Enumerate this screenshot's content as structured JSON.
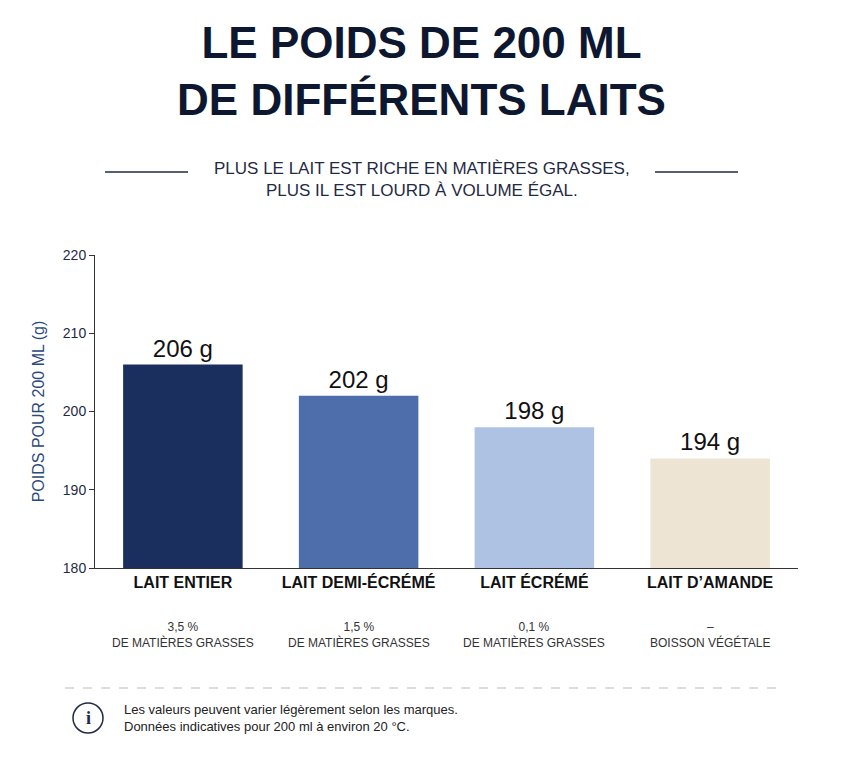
{
  "chart_data": {
    "type": "bar",
    "title": "LE POIDS DE 200 ML DE DIFFÉRENTS LAITS",
    "subtitle": "PLUS LE LAIT EST RICHE EN MATIÈRES GRASSES, PLUS IL EST LOURD À VOLUME ÉGAL.",
    "y_label": "POIDS POUR 200 ML (g)",
    "categories": [
      "LAIT ENTIER",
      "LAIT DEMI-ÉCRÉMÉ",
      "LAIT ÉCRÉMÉ",
      "LAIT D’AMANDE"
    ],
    "category_notes": [
      [
        "3,5 %",
        "DE MATIÈRES GRASSES"
      ],
      [
        "1,5 %",
        "DE MATIÈRES GRASSES"
      ],
      [
        "0,1 %",
        "DE MATIÈRES GRASSES"
      ],
      [
        "–",
        "BOISSON VÉGÉTALE"
      ]
    ],
    "values": [
      206,
      202,
      198,
      194
    ],
    "value_labels": [
      "206 g",
      "202 g",
      "198 g",
      "194 g"
    ],
    "colors": [
      "#1b2f5e",
      "#4d6eab",
      "#aec3e3",
      "#ede4d4"
    ],
    "ylim": [
      180,
      220
    ],
    "yticks": [
      180,
      190,
      200,
      210,
      220
    ],
    "grid": false,
    "data_labels": true,
    "note_icon": "i",
    "notes": [
      "Les valeurs peuvent varier légèrement selon les marques.",
      "Données indicatives pour 200 ml à environ 20 °C."
    ]
  }
}
